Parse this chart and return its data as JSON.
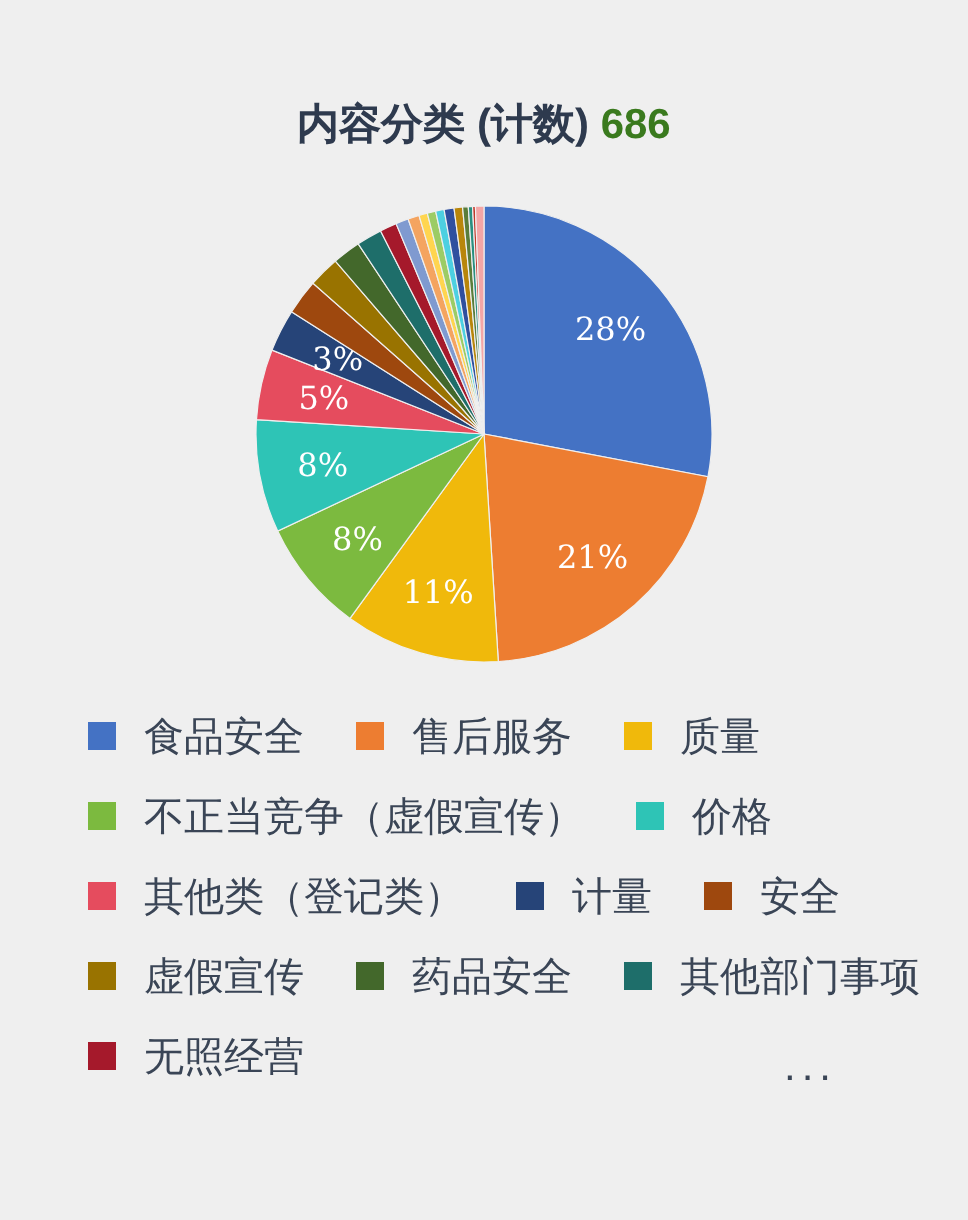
{
  "chart_data": {
    "type": "pie",
    "title": "内容分类 (计数)",
    "subtitle": "686",
    "legend": "bottom",
    "annotations": [
      "..."
    ],
    "categories": [
      "食品安全",
      "售后服务",
      "质量",
      "不正当竞争（虚假宣传）",
      "价格",
      "其他类（登记类）",
      "计量",
      "安全",
      "虚假宣传",
      "药品安全",
      "其他部门事项",
      "无照经营",
      null,
      null,
      null,
      null,
      null,
      null,
      null,
      null,
      null,
      null,
      null
    ],
    "values": [
      28,
      21,
      11,
      8,
      8,
      5,
      3,
      2.5,
      2.2,
      2,
      1.8,
      1.2,
      0.9,
      0.8,
      0.6,
      0.6,
      0.6,
      0.7,
      0.6,
      0.4,
      0.3,
      0.2,
      0.6
    ],
    "value_labels": [
      "28%",
      "21%",
      "11%",
      "8%",
      "8%",
      "5%",
      "3%",
      null,
      null,
      null,
      null,
      null,
      null,
      null,
      null,
      null,
      null,
      null,
      null,
      null,
      null,
      null,
      null
    ],
    "colors": [
      "#4472c4",
      "#ed7d31",
      "#f0b90b",
      "#7cba3f",
      "#2ec4b6",
      "#e54c5e",
      "#264478",
      "#9e480e",
      "#997300",
      "#43682b",
      "#1e6e6a",
      "#a5192b",
      "#7f9ad0",
      "#f4a460",
      "#ffd54f",
      "#9ccc65",
      "#4dd0e1",
      "#2f4f9f",
      "#b8860b",
      "#5a7d3a",
      "#2a8f80",
      "#c0392b",
      "#f4a6a6"
    ]
  }
}
